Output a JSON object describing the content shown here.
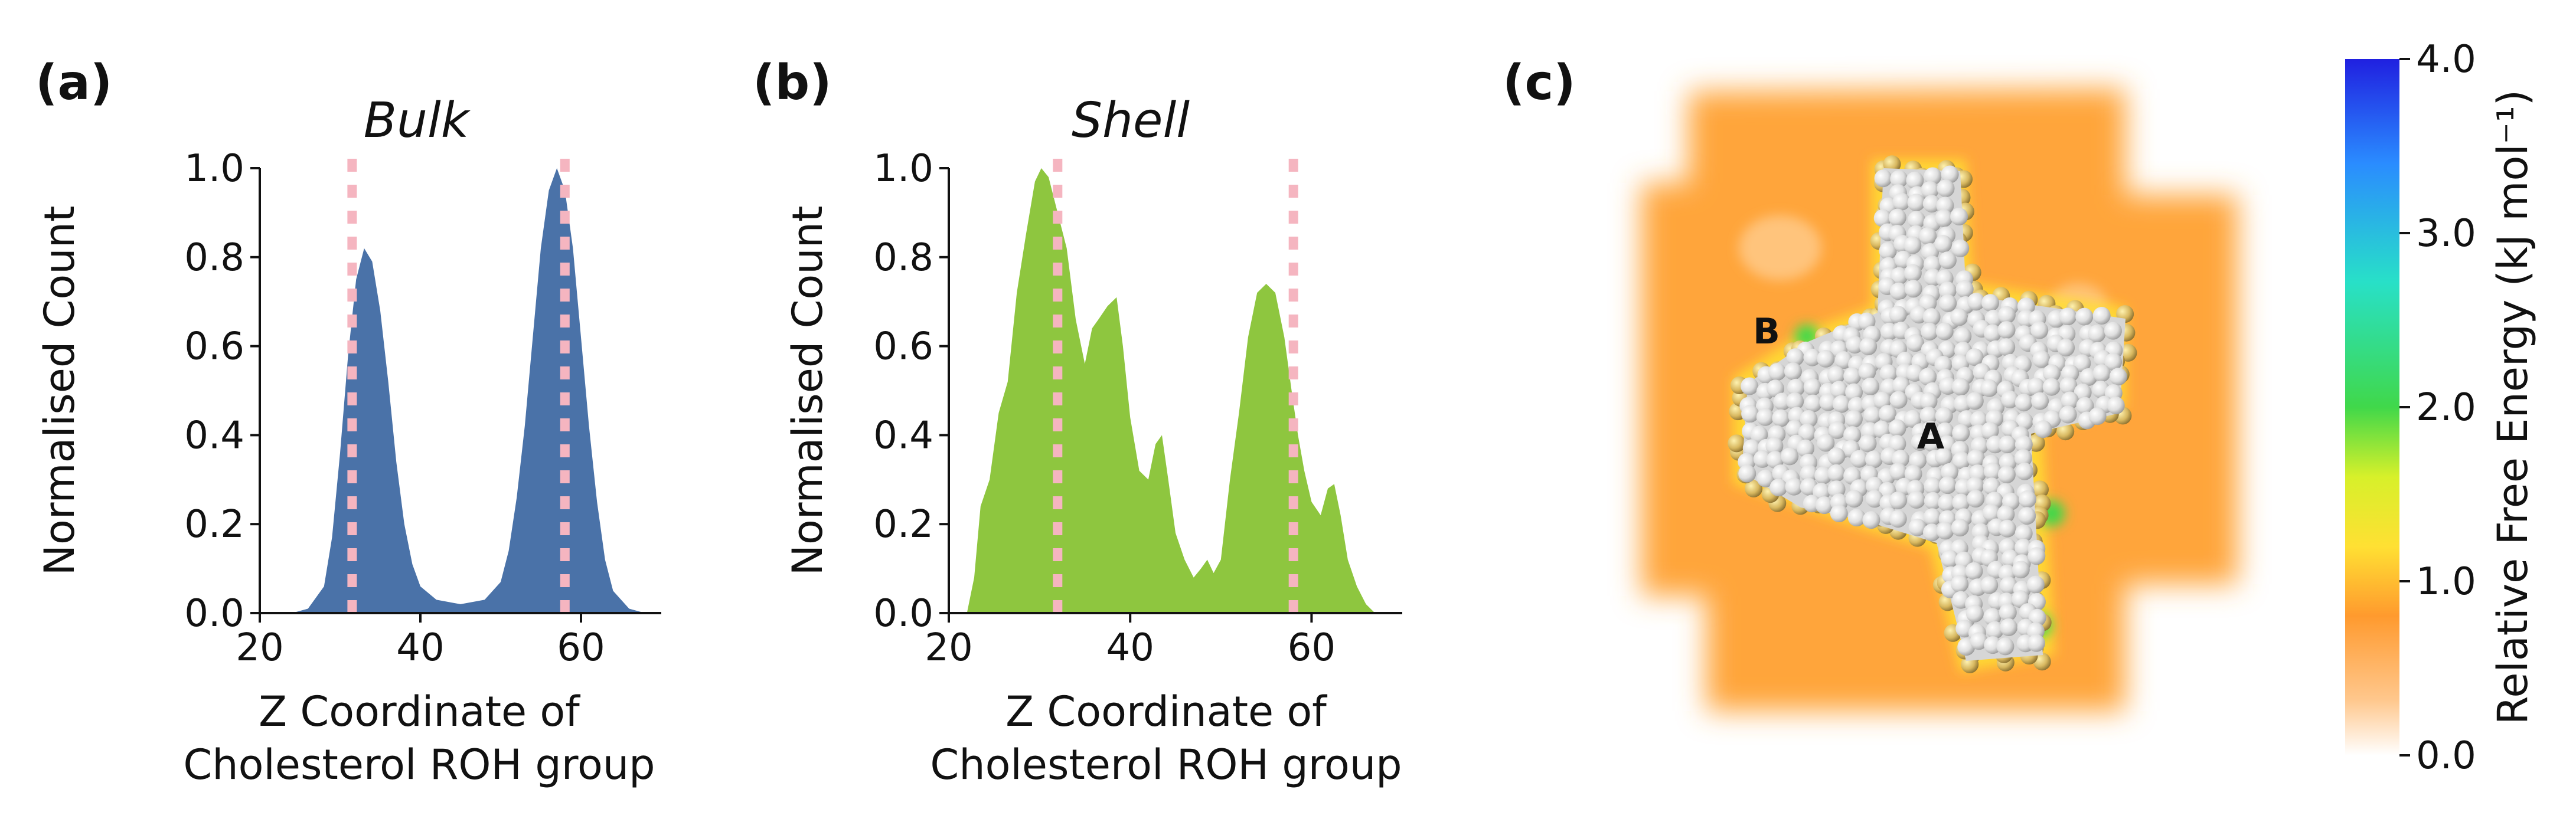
{
  "chart_data": [
    {
      "type": "area",
      "panel_label": "(a)",
      "title": "Bulk",
      "ylabel": "Normalised Count",
      "xlabel": [
        "Z Coordinate of",
        "Cholesterol ROH group"
      ],
      "xlim": [
        20,
        70
      ],
      "ylim": [
        0,
        1.0
      ],
      "xticks": [
        20,
        40,
        60
      ],
      "yticks": [
        0.0,
        0.2,
        0.4,
        0.6,
        0.8,
        1.0
      ],
      "xtick_labels": [
        "20",
        "40",
        "60"
      ],
      "ytick_labels": [
        "0.0",
        "0.2",
        "0.4",
        "0.6",
        "0.8",
        "1.0"
      ],
      "fill_color": "#4a72a8",
      "reference_lines": [
        31.5,
        58
      ],
      "reference_color": "#f5b5c0",
      "series": [
        {
          "name": "Bulk",
          "x": [
            24,
            26,
            28,
            29,
            30,
            31,
            32,
            33,
            34,
            35,
            36,
            37,
            38,
            39,
            40,
            42,
            45,
            48,
            50,
            51,
            52,
            53,
            54,
            55,
            56,
            57,
            58,
            59,
            60,
            61,
            62,
            63,
            64,
            66,
            68
          ],
          "y": [
            0,
            0.01,
            0.06,
            0.17,
            0.36,
            0.58,
            0.75,
            0.82,
            0.79,
            0.68,
            0.52,
            0.34,
            0.2,
            0.11,
            0.06,
            0.03,
            0.02,
            0.03,
            0.07,
            0.14,
            0.26,
            0.42,
            0.62,
            0.82,
            0.95,
            1.0,
            0.95,
            0.82,
            0.62,
            0.42,
            0.25,
            0.12,
            0.05,
            0.01,
            0
          ]
        }
      ]
    },
    {
      "type": "area",
      "panel_label": "(b)",
      "title": "Shell",
      "ylabel": "Normalised Count",
      "xlabel": [
        "Z Coordinate of",
        "Cholesterol ROH group"
      ],
      "xlim": [
        20,
        70
      ],
      "ylim": [
        0,
        1.0
      ],
      "xticks": [
        20,
        40,
        60
      ],
      "yticks": [
        0.0,
        0.2,
        0.4,
        0.6,
        0.8,
        1.0
      ],
      "xtick_labels": [
        "20",
        "40",
        "60"
      ],
      "ytick_labels": [
        "0.0",
        "0.2",
        "0.4",
        "0.6",
        "0.8",
        "1.0"
      ],
      "fill_color": "#8ec63f",
      "reference_lines": [
        32,
        58
      ],
      "reference_color": "#f5b5c0",
      "series": [
        {
          "name": "Shell",
          "x": [
            22,
            22.8,
            23.5,
            24.5,
            25.5,
            26.5,
            27.5,
            28.5,
            29.5,
            30.2,
            31,
            32,
            33,
            34,
            35,
            35.8,
            36.5,
            37.5,
            38.5,
            39.2,
            40,
            41,
            42,
            42.8,
            43.5,
            44.2,
            45,
            46,
            47,
            47.8,
            48.5,
            49.2,
            50,
            51,
            52,
            53,
            54,
            55,
            56,
            57,
            57.8,
            58.5,
            59.2,
            60,
            61,
            61.8,
            62.5,
            63.2,
            64,
            65,
            66,
            67
          ],
          "y": [
            0,
            0.08,
            0.24,
            0.3,
            0.45,
            0.52,
            0.72,
            0.85,
            0.97,
            1.0,
            0.98,
            0.9,
            0.82,
            0.66,
            0.56,
            0.64,
            0.66,
            0.69,
            0.71,
            0.6,
            0.44,
            0.32,
            0.3,
            0.38,
            0.4,
            0.3,
            0.18,
            0.12,
            0.08,
            0.1,
            0.12,
            0.09,
            0.12,
            0.3,
            0.45,
            0.62,
            0.72,
            0.74,
            0.72,
            0.62,
            0.5,
            0.4,
            0.32,
            0.25,
            0.22,
            0.28,
            0.29,
            0.22,
            0.12,
            0.06,
            0.02,
            0
          ]
        }
      ]
    },
    {
      "type": "heatmap",
      "panel_label": "(c)",
      "site_labels": [
        "A",
        "B"
      ],
      "colorbar": {
        "label": "Relative Free Energy (kJ mol⁻¹)",
        "range": [
          0.0,
          4.0
        ],
        "ticks": [
          0.0,
          1.0,
          2.0,
          3.0,
          4.0
        ],
        "tick_labels": [
          "0.0",
          "1.0",
          "2.0",
          "3.0",
          "4.0"
        ],
        "colors": [
          "#ffffff",
          "#ffc78c",
          "#ff9a2e",
          "#ffe033",
          "#d7f02a",
          "#40d84a",
          "#28e0c8",
          "#2a8cff",
          "#2020e0"
        ]
      },
      "background_level": 0.9,
      "background_color": "#ffa53a",
      "protein_color": "#dcdcdc"
    }
  ]
}
